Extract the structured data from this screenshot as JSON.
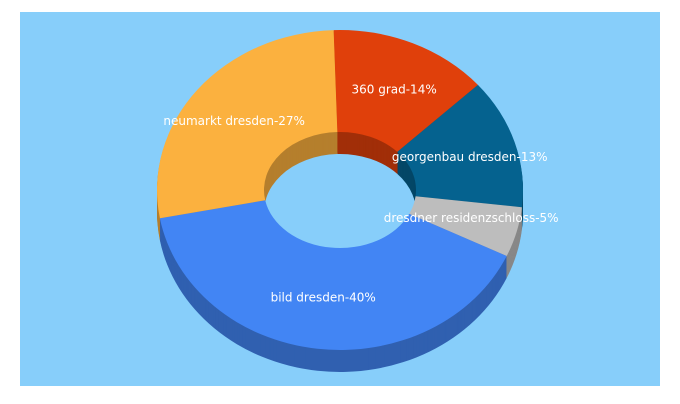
{
  "chart_data": {
    "type": "donut3d",
    "categories": [
      "360 grad-14%",
      "georgenbau dresden-13%",
      "dresdner residenzschloss-5%",
      "bild dresden-40%",
      "neumarkt dresden-27%"
    ],
    "values": [
      14,
      13,
      5,
      40,
      27
    ],
    "colors": [
      "#e0400b",
      "#05628f",
      "#bdbdbd",
      "#4285f4",
      "#fbb13f"
    ]
  }
}
